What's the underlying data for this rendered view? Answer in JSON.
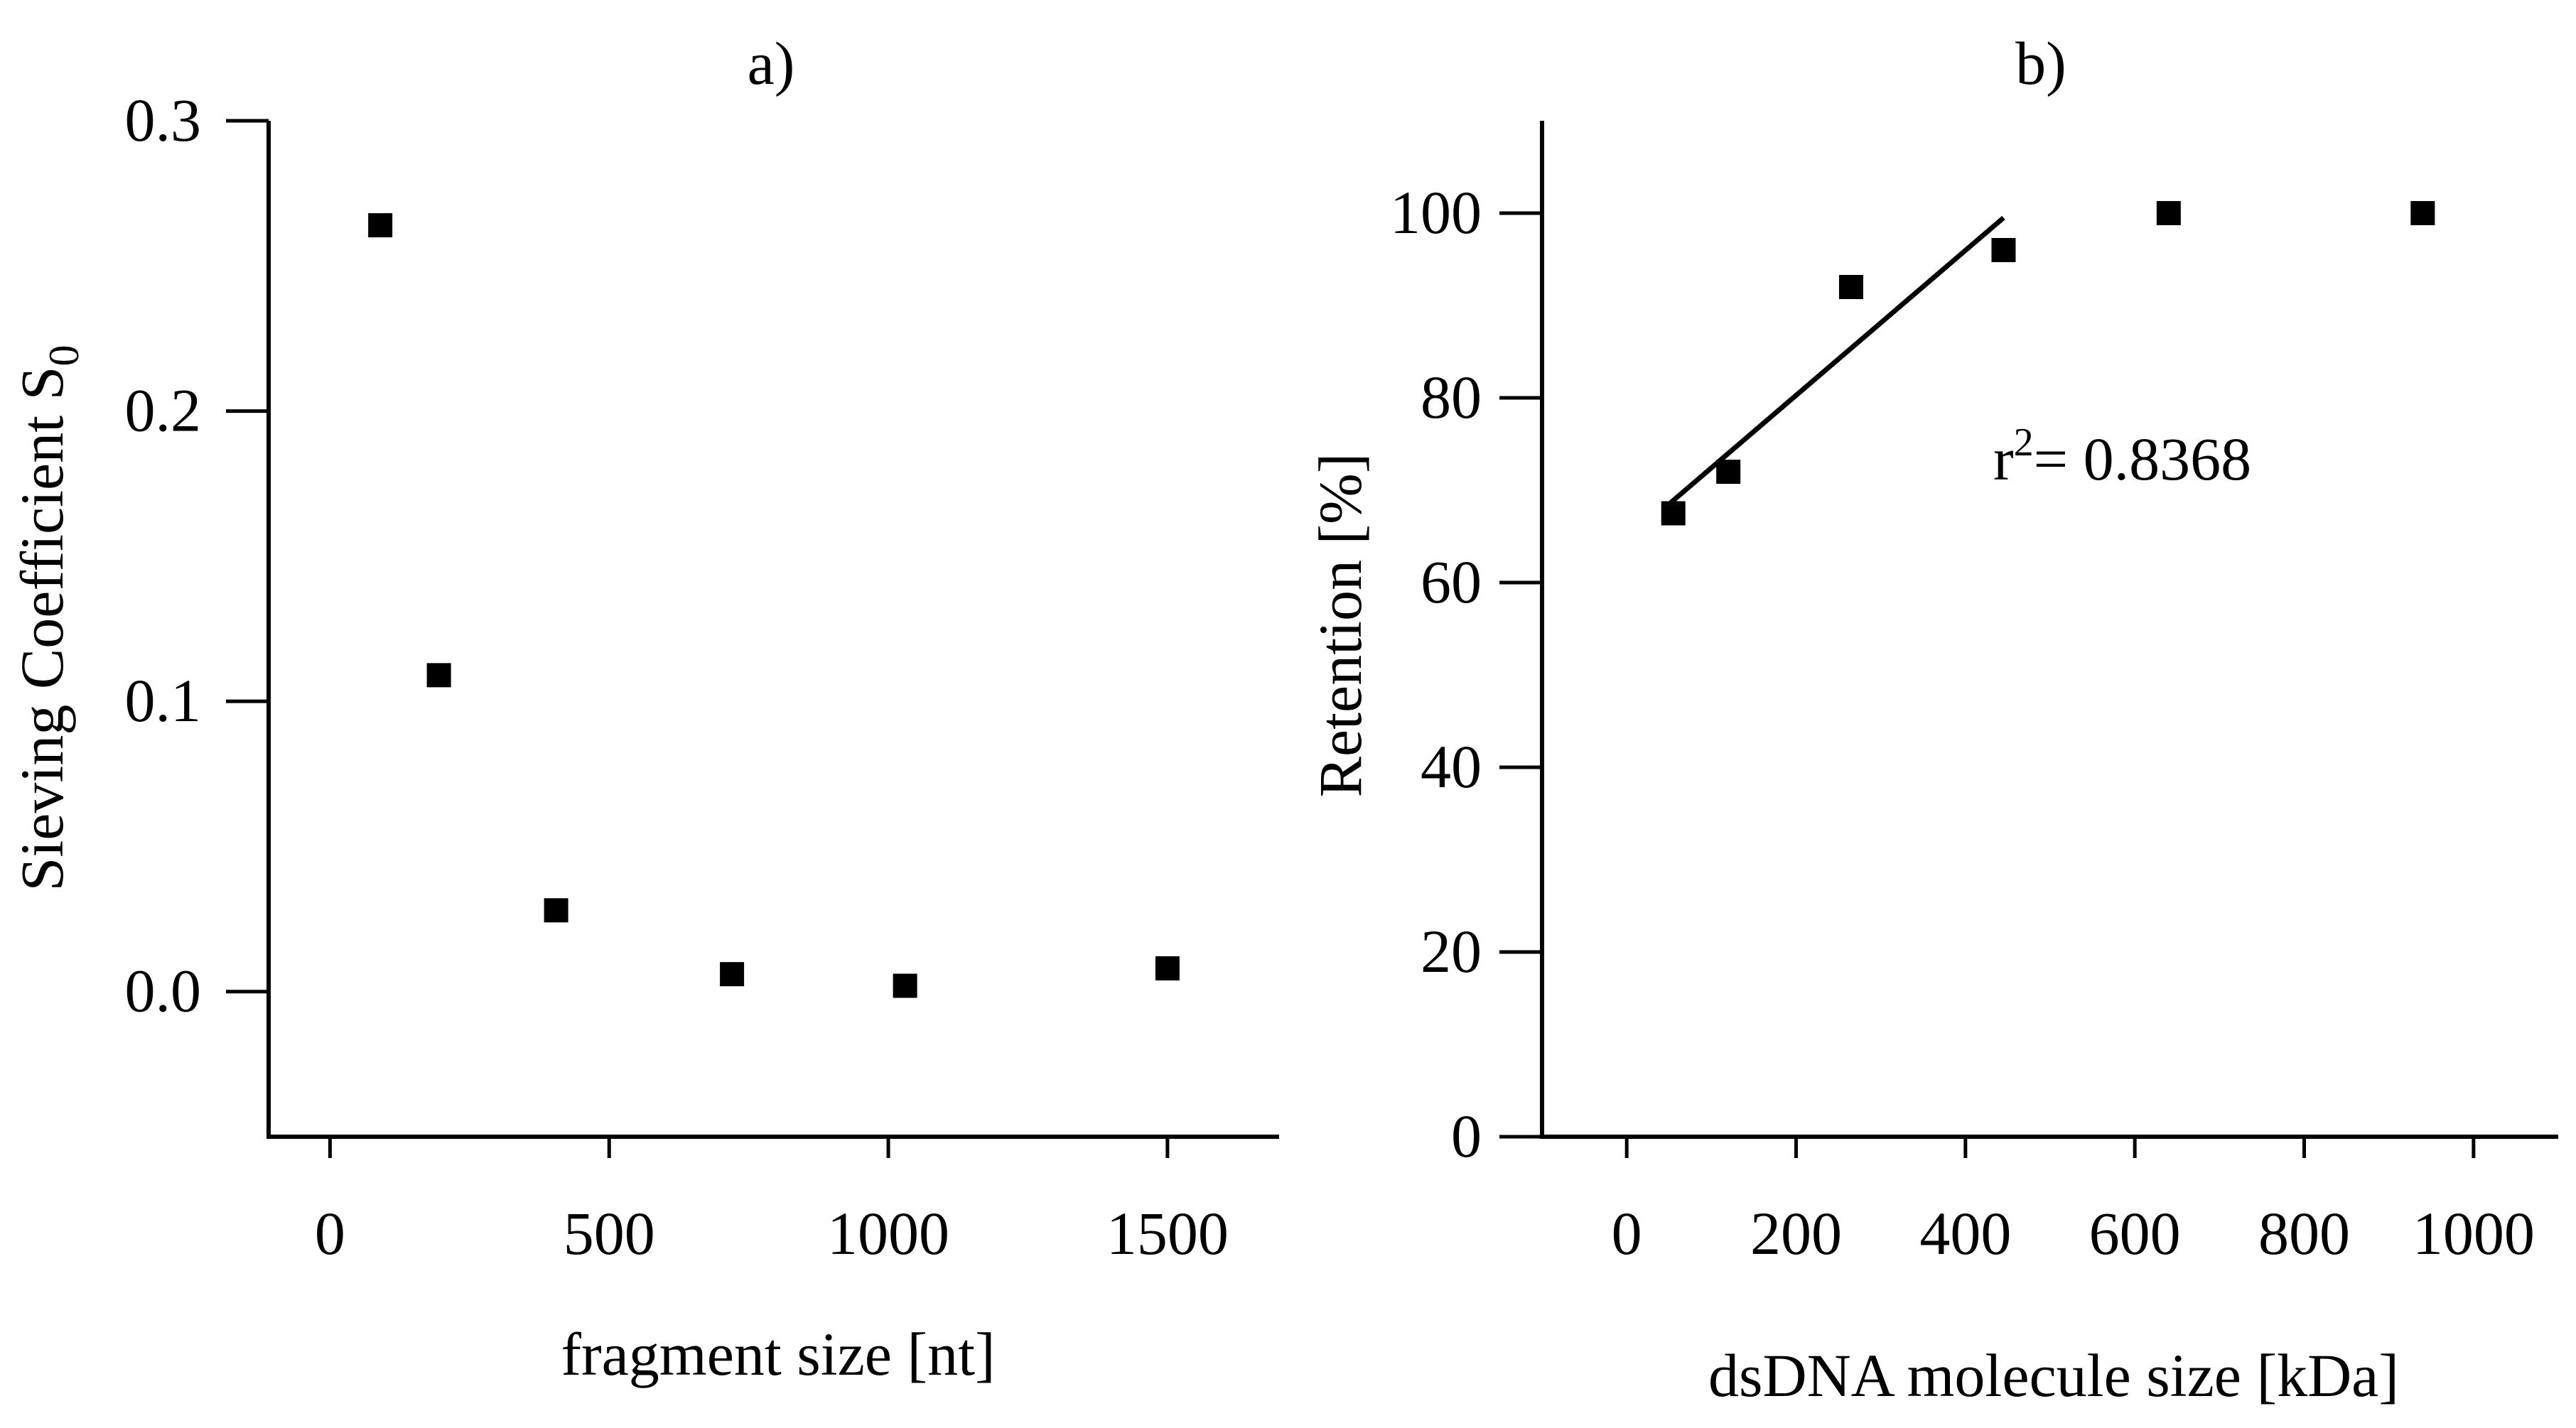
{
  "colors": {
    "axis": "#000000",
    "marker": "#000000",
    "background": "#ffffff"
  },
  "chart_data": [
    {
      "panel": "a",
      "type": "scatter",
      "title": "a)",
      "xlabel": "fragment size [nt]",
      "ylabel_main": "Sieving Coefficient S",
      "ylabel_sub": "0",
      "xlim": [
        -110,
        1700
      ],
      "ylim": [
        -0.05,
        0.3
      ],
      "xticks": [
        0,
        500,
        1000,
        1500
      ],
      "xtick_labels": [
        "0",
        "500",
        "1000",
        "1500"
      ],
      "yticks": [
        0.0,
        0.1,
        0.2,
        0.3
      ],
      "ytick_labels": [
        "0.0",
        "0.1",
        "0.2",
        "0.3"
      ],
      "marker": "square",
      "series": [
        {
          "name": "Sieving coefficient",
          "x": [
            90,
            195,
            405,
            720,
            1030,
            1500
          ],
          "y": [
            0.264,
            0.109,
            0.028,
            0.006,
            0.002,
            0.008
          ]
        }
      ]
    },
    {
      "panel": "b",
      "type": "scatter",
      "title": "b)",
      "xlabel": "dsDNA molecule size [kDa]",
      "ylabel": "Retention [%]",
      "xlim": [
        -100,
        1100
      ],
      "ylim": [
        0,
        110
      ],
      "xticks": [
        0,
        200,
        400,
        600,
        800,
        1000
      ],
      "xtick_labels": [
        "0",
        "200",
        "400",
        "600",
        "800",
        "1000"
      ],
      "yticks": [
        0,
        20,
        40,
        60,
        80,
        100
      ],
      "ytick_labels": [
        "0",
        "20",
        "40",
        "60",
        "80",
        "100"
      ],
      "marker": "square",
      "series": [
        {
          "name": "Retention",
          "x": [
            55,
            120,
            265,
            445,
            640,
            940
          ],
          "y": [
            67.5,
            72,
            92,
            96,
            100,
            100
          ]
        }
      ],
      "fit_line": {
        "x": [
          50,
          445
        ],
        "y": [
          68.5,
          99.5
        ]
      },
      "annotation": {
        "base": "r",
        "sup": "2",
        "text": "= 0.8368"
      }
    }
  ]
}
